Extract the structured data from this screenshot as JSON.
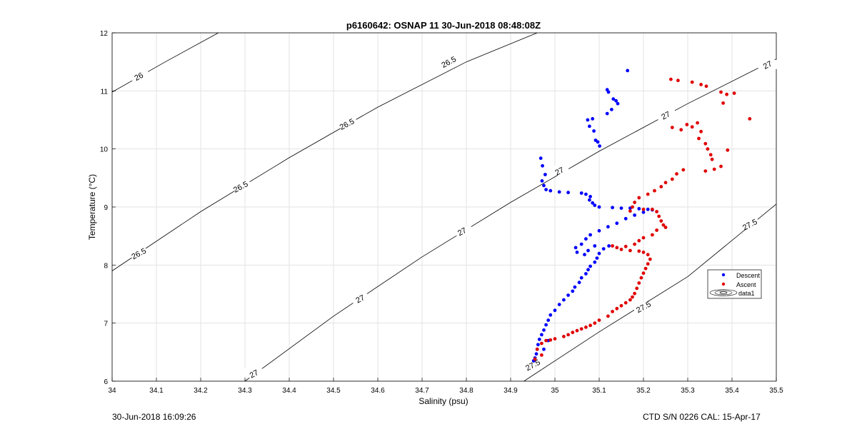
{
  "footer": {
    "timestamp": "30-Jun-2018 16:09:26",
    "instrument": "CTD S/N 0226  CAL: 15-Apr-17"
  },
  "chart_data": {
    "type": "scatter",
    "title": "p6160642: OSNAP 11 30-Jun-2018 08:48:08Z",
    "xlabel": "Salinity (psu)",
    "ylabel": "Temperature (°C)",
    "xlim": [
      34,
      35.5
    ],
    "ylim": [
      6,
      12
    ],
    "xticks": [
      "34",
      "34.1",
      "34.2",
      "34.3",
      "34.4",
      "34.5",
      "34.6",
      "34.7",
      "34.8",
      "34.9",
      "35",
      "35.1",
      "35.2",
      "35.3",
      "35.4",
      "35.5"
    ],
    "yticks": [
      "6",
      "7",
      "8",
      "9",
      "10",
      "11",
      "12"
    ],
    "grid": true,
    "legend_position": "bottom-right",
    "series": [
      {
        "name": "Descent",
        "color": "#0000ff",
        "marker": "dot",
        "points": [
          [
            35.164,
            11.35
          ],
          [
            35.121,
            10.98
          ],
          [
            35.132,
            10.86
          ],
          [
            35.142,
            10.78
          ],
          [
            35.128,
            10.68
          ],
          [
            35.118,
            10.61
          ],
          [
            35.085,
            10.52
          ],
          [
            35.088,
            10.31
          ],
          [
            35.092,
            10.15
          ],
          [
            35.101,
            10.05
          ],
          [
            35.074,
            10.5
          ],
          [
            35.078,
            10.39
          ],
          [
            35.118,
            11.02
          ],
          [
            35.138,
            10.83
          ],
          [
            35.097,
            10.12
          ],
          [
            34.968,
            9.84
          ],
          [
            34.972,
            9.71
          ],
          [
            34.978,
            9.56
          ],
          [
            34.971,
            9.45
          ],
          [
            34.975,
            9.37
          ],
          [
            34.98,
            9.3
          ],
          [
            34.99,
            9.28
          ],
          [
            35.01,
            9.26
          ],
          [
            35.03,
            9.25
          ],
          [
            35.06,
            9.24
          ],
          [
            35.07,
            9.22
          ],
          [
            35.08,
            9.18
          ],
          [
            35.078,
            9.12
          ],
          [
            35.085,
            9.07
          ],
          [
            35.09,
            9.03
          ],
          [
            35.1,
            9.0
          ],
          [
            35.13,
            8.99
          ],
          [
            35.15,
            8.98
          ],
          [
            35.17,
            8.98
          ],
          [
            35.19,
            8.97
          ],
          [
            35.21,
            8.96
          ],
          [
            35.22,
            8.95
          ],
          [
            35.2,
            8.91
          ],
          [
            35.18,
            8.86
          ],
          [
            35.16,
            8.8
          ],
          [
            35.14,
            8.72
          ],
          [
            35.12,
            8.66
          ],
          [
            35.1,
            8.59
          ],
          [
            35.08,
            8.52
          ],
          [
            35.07,
            8.45
          ],
          [
            35.075,
            8.25
          ],
          [
            35.09,
            8.33
          ],
          [
            35.06,
            8.36
          ],
          [
            35.047,
            8.3
          ],
          [
            35.05,
            8.22
          ],
          [
            35.067,
            8.18
          ],
          [
            35.122,
            8.33
          ],
          [
            35.11,
            8.28
          ],
          [
            35.1,
            8.2
          ],
          [
            35.095,
            8.12
          ],
          [
            35.09,
            8.05
          ],
          [
            35.08,
            7.98
          ],
          [
            35.075,
            7.92
          ],
          [
            35.07,
            7.85
          ],
          [
            35.06,
            7.78
          ],
          [
            35.055,
            7.7
          ],
          [
            35.045,
            7.62
          ],
          [
            35.04,
            7.55
          ],
          [
            35.03,
            7.48
          ],
          [
            35.02,
            7.4
          ],
          [
            35.01,
            7.32
          ],
          [
            35.0,
            7.22
          ],
          [
            34.99,
            7.14
          ],
          [
            34.985,
            7.05
          ],
          [
            34.98,
            6.97
          ],
          [
            34.975,
            6.88
          ],
          [
            34.97,
            6.8
          ],
          [
            34.965,
            6.72
          ],
          [
            34.962,
            6.63
          ],
          [
            34.96,
            6.55
          ],
          [
            34.958,
            6.47
          ],
          [
            34.955,
            6.4
          ],
          [
            34.952,
            6.35
          ],
          [
            34.975,
            6.55
          ],
          [
            34.985,
            6.7
          ]
        ]
      },
      {
        "name": "Ascent",
        "color": "#e00000",
        "marker": "dot",
        "points": [
          [
            35.262,
            11.2
          ],
          [
            35.278,
            11.18
          ],
          [
            35.31,
            11.15
          ],
          [
            35.33,
            11.11
          ],
          [
            35.342,
            11.08
          ],
          [
            35.375,
            10.98
          ],
          [
            35.388,
            10.94
          ],
          [
            35.405,
            10.96
          ],
          [
            35.38,
            10.79
          ],
          [
            35.44,
            10.52
          ],
          [
            35.265,
            10.37
          ],
          [
            35.285,
            10.33
          ],
          [
            35.298,
            10.42
          ],
          [
            35.31,
            10.38
          ],
          [
            35.322,
            10.45
          ],
          [
            35.33,
            10.3
          ],
          [
            35.325,
            10.18
          ],
          [
            35.34,
            10.09
          ],
          [
            35.345,
            10.0
          ],
          [
            35.352,
            9.9
          ],
          [
            35.355,
            9.82
          ],
          [
            35.39,
            9.98
          ],
          [
            35.375,
            9.7
          ],
          [
            35.36,
            9.65
          ],
          [
            35.34,
            9.62
          ],
          [
            35.29,
            9.64
          ],
          [
            35.275,
            9.57
          ],
          [
            35.265,
            9.48
          ],
          [
            35.25,
            9.42
          ],
          [
            35.24,
            9.35
          ],
          [
            35.225,
            9.28
          ],
          [
            35.21,
            9.22
          ],
          [
            35.19,
            9.16
          ],
          [
            35.18,
            9.08
          ],
          [
            35.175,
            9.0
          ],
          [
            35.17,
            8.93
          ],
          [
            35.2,
            8.96
          ],
          [
            35.22,
            8.96
          ],
          [
            35.23,
            8.92
          ],
          [
            35.235,
            8.84
          ],
          [
            35.24,
            8.76
          ],
          [
            35.245,
            8.69
          ],
          [
            35.25,
            8.65
          ],
          [
            35.23,
            8.6
          ],
          [
            35.22,
            8.52
          ],
          [
            35.2,
            8.47
          ],
          [
            35.19,
            8.42
          ],
          [
            35.18,
            8.36
          ],
          [
            35.16,
            8.32
          ],
          [
            35.14,
            8.3
          ],
          [
            35.13,
            8.33
          ],
          [
            35.15,
            8.27
          ],
          [
            35.17,
            8.25
          ],
          [
            35.19,
            8.24
          ],
          [
            35.2,
            8.22
          ],
          [
            35.21,
            8.18
          ],
          [
            35.215,
            8.1
          ],
          [
            35.21,
            8.02
          ],
          [
            35.205,
            7.94
          ],
          [
            35.2,
            7.86
          ],
          [
            35.195,
            7.78
          ],
          [
            35.19,
            7.69
          ],
          [
            35.185,
            7.6
          ],
          [
            35.18,
            7.51
          ],
          [
            35.175,
            7.45
          ],
          [
            35.17,
            7.4
          ],
          [
            35.16,
            7.35
          ],
          [
            35.15,
            7.3
          ],
          [
            35.14,
            7.25
          ],
          [
            35.13,
            7.2
          ],
          [
            35.12,
            7.12
          ],
          [
            35.1,
            7.05
          ],
          [
            35.09,
            7.0
          ],
          [
            35.08,
            6.96
          ],
          [
            35.07,
            6.93
          ],
          [
            35.06,
            6.9
          ],
          [
            35.05,
            6.87
          ],
          [
            35.04,
            6.84
          ],
          [
            35.03,
            6.8
          ],
          [
            35.02,
            6.77
          ],
          [
            35.0,
            6.73
          ],
          [
            34.99,
            6.71
          ],
          [
            34.98,
            6.7
          ],
          [
            34.97,
            6.65
          ],
          [
            34.96,
            6.55
          ],
          [
            34.97,
            6.45
          ],
          [
            34.955,
            6.38
          ]
        ]
      },
      {
        "name": "data1",
        "type": "contour",
        "color": "#000000",
        "levels": [
          {
            "label": "26",
            "points": [
              [
                34.0,
                10.98
              ],
              [
                34.12,
                11.5
              ],
              [
                34.24,
                12.0
              ]
            ]
          },
          {
            "label": "26.5",
            "points": [
              [
                34.0,
                7.9
              ],
              [
                34.2,
                8.92
              ],
              [
                34.4,
                9.85
              ],
              [
                34.6,
                10.72
              ],
              [
                34.8,
                11.5
              ],
              [
                34.96,
                12.0
              ]
            ]
          },
          {
            "label": "27",
            "points": [
              [
                34.3,
                6.0
              ],
              [
                34.5,
                7.12
              ],
              [
                34.7,
                8.14
              ],
              [
                34.9,
                9.08
              ],
              [
                35.1,
                9.96
              ],
              [
                35.3,
                10.78
              ],
              [
                35.5,
                11.55
              ]
            ]
          },
          {
            "label": "27.5",
            "points": [
              [
                34.93,
                6.0
              ],
              [
                35.1,
                6.85
              ],
              [
                35.3,
                7.8
              ],
              [
                35.5,
                9.05
              ]
            ]
          }
        ],
        "contour_labels": [
          {
            "text": "26",
            "x": 34.06,
            "y": 11.25
          },
          {
            "text": "26.5",
            "x": 34.06,
            "y": 8.2
          },
          {
            "text": "26.5",
            "x": 34.29,
            "y": 9.35
          },
          {
            "text": "26.5",
            "x": 34.53,
            "y": 10.43
          },
          {
            "text": "26.5",
            "x": 34.76,
            "y": 11.5
          },
          {
            "text": "27",
            "x": 34.32,
            "y": 6.13
          },
          {
            "text": "27",
            "x": 34.56,
            "y": 7.42
          },
          {
            "text": "27",
            "x": 34.79,
            "y": 8.58
          },
          {
            "text": "27",
            "x": 35.01,
            "y": 9.62
          },
          {
            "text": "27",
            "x": 35.25,
            "y": 10.58
          },
          {
            "text": "27",
            "x": 35.48,
            "y": 11.45
          },
          {
            "text": "27.5",
            "x": 34.95,
            "y": 6.28
          },
          {
            "text": "27.5",
            "x": 35.2,
            "y": 7.28
          },
          {
            "text": "27.5",
            "x": 35.44,
            "y": 8.7
          }
        ]
      }
    ]
  }
}
